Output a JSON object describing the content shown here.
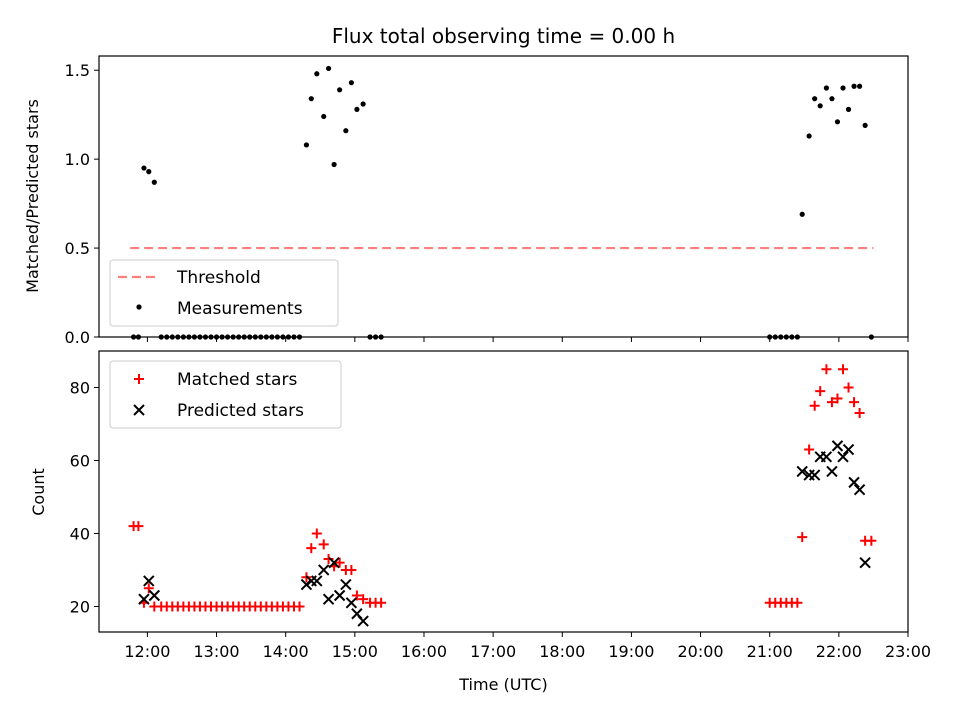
{
  "chart_data": [
    {
      "type": "scatter",
      "title": "Flux total observing time = 0.00 h",
      "ylabel": "Matched/Predicted stars",
      "ylim": [
        0,
        1.58
      ],
      "yticks": [
        0.0,
        0.5,
        1.0,
        1.5
      ],
      "ytick_labels": [
        "0.0",
        "0.5",
        "1.0",
        "1.5"
      ],
      "legend_position": "lower-left",
      "series": [
        {
          "name": "Threshold",
          "kind": "dashed-line",
          "color": "#ff7f7f",
          "x": [
            11.75,
            22.5
          ],
          "y": [
            0.5,
            0.5
          ]
        },
        {
          "name": "Measurements",
          "kind": "dot",
          "color": "#000000",
          "x": [
            11.8,
            11.87,
            11.95,
            12.02,
            12.1,
            12.2,
            12.28,
            12.36,
            12.44,
            12.52,
            12.6,
            12.68,
            12.76,
            12.84,
            12.92,
            13.0,
            13.08,
            13.16,
            13.24,
            13.32,
            13.4,
            13.48,
            13.56,
            13.64,
            13.72,
            13.8,
            13.88,
            13.96,
            14.04,
            14.12,
            14.2,
            14.3,
            14.37,
            14.45,
            14.55,
            14.62,
            14.7,
            14.78,
            14.87,
            14.95,
            15.03,
            15.12,
            15.22,
            15.3,
            15.38,
            21.0,
            21.08,
            21.16,
            21.24,
            21.32,
            21.4,
            21.47,
            21.57,
            21.65,
            21.73,
            21.82,
            21.9,
            21.98,
            22.06,
            22.14,
            22.22,
            22.3,
            22.38,
            22.47
          ],
          "y": [
            0,
            0,
            0.95,
            0.93,
            0.87,
            0,
            0,
            0,
            0,
            0,
            0,
            0,
            0,
            0,
            0,
            0,
            0,
            0,
            0,
            0,
            0,
            0,
            0,
            0,
            0,
            0,
            0,
            0,
            0,
            0,
            0,
            1.08,
            1.34,
            1.48,
            1.24,
            1.51,
            0.97,
            1.39,
            1.16,
            1.43,
            1.28,
            1.31,
            0,
            0,
            0,
            0,
            0,
            0,
            0,
            0,
            0,
            0.69,
            1.13,
            1.34,
            1.3,
            1.4,
            1.34,
            1.21,
            1.4,
            1.28,
            1.41,
            1.41,
            1.19,
            0
          ]
        }
      ]
    },
    {
      "type": "scatter",
      "xlabel": "Time (UTC)",
      "ylabel": "Count",
      "xlim": [
        11.3,
        23.0
      ],
      "ylim": [
        13,
        90
      ],
      "xticks": [
        12,
        13,
        14,
        15,
        16,
        17,
        18,
        19,
        20,
        21,
        22,
        23
      ],
      "xtick_labels": [
        "12:00",
        "13:00",
        "14:00",
        "15:00",
        "16:00",
        "17:00",
        "18:00",
        "19:00",
        "20:00",
        "21:00",
        "22:00",
        "23:00"
      ],
      "yticks": [
        20,
        40,
        60,
        80
      ],
      "ytick_labels": [
        "20",
        "40",
        "60",
        "80"
      ],
      "legend_position": "top-left",
      "series": [
        {
          "name": "Matched stars",
          "kind": "plus",
          "color": "#ff0000",
          "x": [
            11.8,
            11.87,
            11.95,
            12.02,
            12.1,
            12.2,
            12.28,
            12.36,
            12.44,
            12.52,
            12.6,
            12.68,
            12.76,
            12.84,
            12.92,
            13.0,
            13.08,
            13.16,
            13.24,
            13.32,
            13.4,
            13.48,
            13.56,
            13.64,
            13.72,
            13.8,
            13.88,
            13.96,
            14.04,
            14.12,
            14.2,
            14.3,
            14.37,
            14.45,
            14.55,
            14.62,
            14.7,
            14.78,
            14.87,
            14.95,
            15.03,
            15.12,
            15.22,
            15.3,
            15.38,
            21.0,
            21.08,
            21.16,
            21.24,
            21.32,
            21.4,
            21.47,
            21.57,
            21.65,
            21.73,
            21.82,
            21.9,
            21.98,
            22.06,
            22.14,
            22.22,
            22.3,
            22.38,
            22.47
          ],
          "y": [
            42,
            42,
            21,
            25,
            20,
            20,
            20,
            20,
            20,
            20,
            20,
            20,
            20,
            20,
            20,
            20,
            20,
            20,
            20,
            20,
            20,
            20,
            20,
            20,
            20,
            20,
            20,
            20,
            20,
            20,
            20,
            28,
            36,
            40,
            37,
            33,
            31,
            32,
            30,
            30,
            23,
            22,
            21,
            21,
            21,
            21,
            21,
            21,
            21,
            21,
            21,
            39,
            63,
            75,
            79,
            85,
            76,
            77,
            85,
            80,
            76,
            73,
            38,
            38
          ]
        },
        {
          "name": "Predicted stars",
          "kind": "x",
          "color": "#000000",
          "x": [
            11.95,
            12.02,
            12.1,
            14.3,
            14.37,
            14.45,
            14.55,
            14.62,
            14.7,
            14.78,
            14.87,
            14.95,
            15.03,
            15.12,
            21.47,
            21.57,
            21.65,
            21.73,
            21.82,
            21.9,
            21.98,
            22.06,
            22.14,
            22.22,
            22.3,
            22.38
          ],
          "y": [
            22,
            27,
            23,
            26,
            27,
            27,
            30,
            22,
            32,
            23,
            26,
            21,
            18,
            16,
            57,
            56,
            56,
            61,
            61,
            57,
            64,
            61,
            63,
            54,
            52,
            32
          ]
        }
      ]
    }
  ]
}
